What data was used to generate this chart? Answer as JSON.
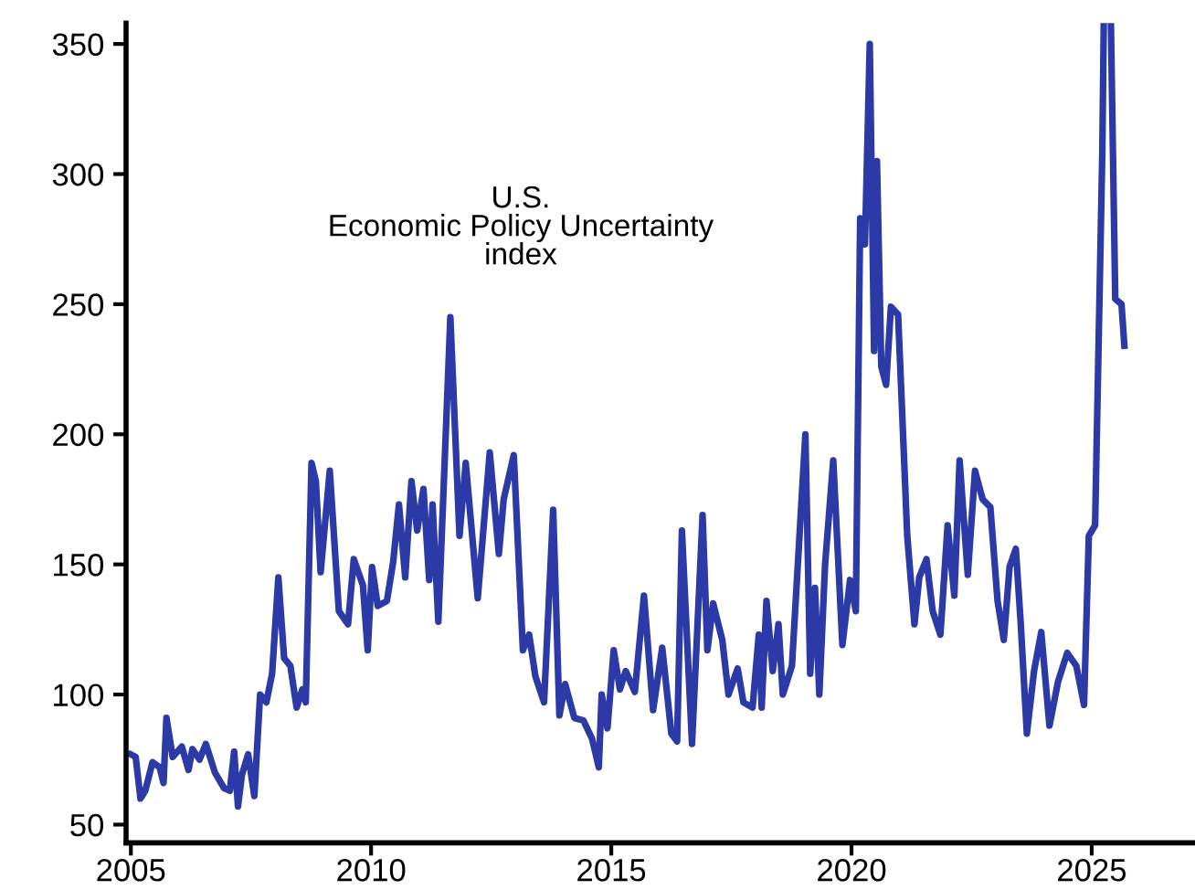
{
  "chart_data": {
    "type": "line",
    "xlim": [
      2004.9,
      2027.1
    ],
    "ylim": [
      43,
      358
    ],
    "xticks": [
      2005,
      2010,
      2015,
      2020,
      2025
    ],
    "yticks": [
      50,
      100,
      150,
      200,
      250,
      300,
      350
    ],
    "annotations": [
      "U.S.\nEconomic Policy Uncertainty\nindex"
    ],
    "series": [
      {
        "color": "#2b3aa6",
        "x": [
          2005.0,
          2005.1,
          2005.2,
          2005.3,
          2005.45,
          2005.6,
          2005.68,
          2005.74,
          2005.87,
          2006.06,
          2006.2,
          2006.28,
          2006.43,
          2006.56,
          2006.75,
          2006.94,
          2007.06,
          2007.15,
          2007.23,
          2007.31,
          2007.44,
          2007.57,
          2007.69,
          2007.82,
          2007.94,
          2008.07,
          2008.19,
          2008.32,
          2008.45,
          2008.57,
          2008.64,
          2008.76,
          2008.85,
          2008.95,
          2009.14,
          2009.33,
          2009.52,
          2009.64,
          2009.83,
          2009.93,
          2010.02,
          2010.14,
          2010.33,
          2010.46,
          2010.58,
          2010.71,
          2010.84,
          2010.96,
          2011.09,
          2011.21,
          2011.28,
          2011.4,
          2011.65,
          2011.84,
          2011.97,
          2012.22,
          2012.47,
          2012.66,
          2012.76,
          2012.97,
          2013.16,
          2013.29,
          2013.42,
          2013.6,
          2013.79,
          2013.92,
          2014.04,
          2014.23,
          2014.42,
          2014.6,
          2014.74,
          2014.8,
          2014.92,
          2015.05,
          2015.18,
          2015.3,
          2015.49,
          2015.68,
          2015.87,
          2016.06,
          2016.25,
          2016.37,
          2016.47,
          2016.68,
          2016.9,
          2017.0,
          2017.12,
          2017.31,
          2017.44,
          2017.63,
          2017.75,
          2017.94,
          2018.07,
          2018.13,
          2018.23,
          2018.36,
          2018.48,
          2018.57,
          2018.76,
          2019.04,
          2019.14,
          2019.24,
          2019.33,
          2019.45,
          2019.62,
          2019.81,
          2019.97,
          2020.09,
          2020.18,
          2020.28,
          2020.38,
          2020.47,
          2020.53,
          2020.62,
          2020.72,
          2020.82,
          2020.97,
          2021.16,
          2021.31,
          2021.41,
          2021.56,
          2021.69,
          2021.85,
          2022.0,
          2022.14,
          2022.25,
          2022.42,
          2022.57,
          2022.73,
          2022.89,
          2023.04,
          2023.17,
          2023.29,
          2023.42,
          2023.52,
          2023.65,
          2023.8,
          2023.95,
          2024.12,
          2024.3,
          2024.49,
          2024.68,
          2024.84,
          2024.94,
          2025.07,
          2025.22,
          2025.25,
          2025.3,
          2025.4,
          2025.49,
          2025.62,
          2025.68
        ],
        "values": [
          77,
          76,
          60,
          63,
          74,
          72,
          66,
          91,
          76,
          80,
          71,
          79,
          75,
          81,
          70,
          64,
          63,
          78,
          57,
          69,
          77,
          61,
          100,
          97,
          108,
          145,
          114,
          111,
          95,
          102,
          97,
          189,
          182,
          147,
          186,
          132,
          127,
          152,
          142,
          117,
          149,
          134,
          136,
          151,
          173,
          145,
          182,
          163,
          179,
          144,
          173,
          128,
          245,
          161,
          189,
          137,
          193,
          154,
          175,
          192,
          117,
          123,
          107,
          97,
          171,
          92,
          104,
          91,
          90,
          83,
          72,
          100,
          87,
          117,
          102,
          109,
          101,
          138,
          94,
          118,
          85,
          82,
          163,
          81,
          169,
          117,
          135,
          121,
          100,
          110,
          97,
          95,
          123,
          95,
          136,
          109,
          127,
          100,
          111,
          200,
          108,
          141,
          100,
          150,
          190,
          119,
          144,
          132,
          283,
          273,
          350,
          232,
          305,
          226,
          219,
          249,
          246,
          161,
          127,
          145,
          152,
          132,
          123,
          165,
          138,
          190,
          146,
          186,
          175,
          172,
          136,
          121,
          149,
          156,
          128,
          85,
          109,
          124,
          88,
          105,
          116,
          111,
          96,
          161,
          165,
          308,
          357,
          null,
          357,
          252,
          250,
          234
        ]
      }
    ]
  }
}
